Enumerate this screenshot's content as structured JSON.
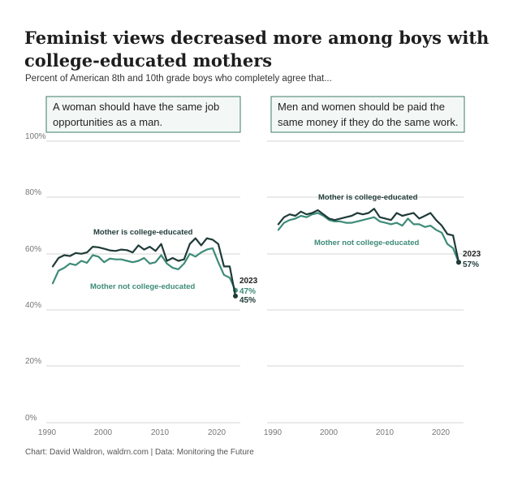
{
  "title": "Feminist views decreased more among boys with college-educated mothers",
  "subtitle": "Percent of American 8th and 10th grade boys who completely agree that...",
  "source": "Chart: David Waldron, waldrn.com | Data: Monitoring the Future",
  "colors": {
    "college": "#1f3b38",
    "not_college": "#3d8b78",
    "grid": "#d4d4d4",
    "box_border": "#3d7b6a",
    "box_fill": "#f3f8f6"
  },
  "chart_data": [
    {
      "type": "line",
      "panel_title": [
        "A woman should have the same job",
        "opportunities as a man."
      ],
      "x": [
        1991,
        1992,
        1993,
        1994,
        1995,
        1996,
        1997,
        1998,
        1999,
        2000,
        2001,
        2002,
        2003,
        2004,
        2005,
        2006,
        2007,
        2008,
        2009,
        2010,
        2011,
        2012,
        2013,
        2014,
        2015,
        2016,
        2017,
        2018,
        2019,
        2020,
        2021,
        2022,
        2023
      ],
      "xlim": [
        1989,
        2024
      ],
      "xticks": [
        "1990",
        "2000",
        "2010",
        "2020"
      ],
      "ylim": [
        0,
        100
      ],
      "yticks": [
        "100%",
        "80%",
        "60%",
        "40%",
        "20%",
        "0%"
      ],
      "series": [
        {
          "name": "Mother is college-educated",
          "color": "#1f3b38",
          "values": [
            55.5,
            58.5,
            59.5,
            59.2,
            60.3,
            60.0,
            60.5,
            62.5,
            62.3,
            61.8,
            61.2,
            61.0,
            61.5,
            61.3,
            60.5,
            63.0,
            61.5,
            62.5,
            61.0,
            63.5,
            57.5,
            58.5,
            57.5,
            58.0,
            63.5,
            65.5,
            63.0,
            65.5,
            65.0,
            63.5,
            55.5,
            55.5,
            45.0
          ]
        },
        {
          "name": "Mother not college-educated",
          "color": "#3d8b78",
          "values": [
            49.5,
            54.0,
            55.0,
            56.5,
            56.0,
            57.5,
            56.8,
            59.5,
            59.0,
            57.0,
            58.3,
            58.0,
            58.0,
            57.5,
            57.0,
            57.5,
            58.5,
            56.5,
            57.0,
            59.5,
            56.5,
            55.0,
            54.5,
            56.5,
            60.0,
            59.0,
            60.5,
            61.5,
            62.0,
            57.0,
            52.5,
            51.5,
            47.0
          ]
        }
      ],
      "end_year": "2023",
      "end_labels": [
        "47%",
        "45%"
      ]
    },
    {
      "type": "line",
      "panel_title": [
        "Men and women should be paid the",
        "same money if they do the same work."
      ],
      "x": [
        1991,
        1992,
        1993,
        1994,
        1995,
        1996,
        1997,
        1998,
        1999,
        2000,
        2001,
        2002,
        2003,
        2004,
        2005,
        2006,
        2007,
        2008,
        2009,
        2010,
        2011,
        2012,
        2013,
        2014,
        2015,
        2016,
        2017,
        2018,
        2019,
        2020,
        2021,
        2022,
        2023
      ],
      "xlim": [
        1989,
        2024
      ],
      "xticks": [
        "1990",
        "2000",
        "2010",
        "2020"
      ],
      "ylim": [
        0,
        100
      ],
      "yticks": [
        "100%",
        "80%",
        "60%",
        "40%",
        "20%",
        "0%"
      ],
      "series": [
        {
          "name": "Mother is college-educated",
          "color": "#1f3b38",
          "values": [
            70.5,
            73.0,
            74.0,
            73.5,
            75.0,
            74.0,
            74.5,
            75.5,
            74.0,
            72.5,
            72.0,
            72.5,
            73.0,
            73.5,
            74.5,
            74.0,
            74.5,
            76.0,
            73.0,
            72.5,
            72.0,
            74.5,
            73.5,
            74.0,
            74.5,
            72.5,
            73.5,
            74.5,
            72.0,
            70.0,
            67.0,
            66.5,
            57.0
          ]
        },
        {
          "name": "Mother not college-educated",
          "color": "#3d8b78",
          "values": [
            68.5,
            71.0,
            72.0,
            72.5,
            73.5,
            73.0,
            74.0,
            74.5,
            73.5,
            72.0,
            71.5,
            71.5,
            71.0,
            71.0,
            71.5,
            72.0,
            72.5,
            73.0,
            71.5,
            71.0,
            70.5,
            71.0,
            70.0,
            72.5,
            70.5,
            70.5,
            69.5,
            70.0,
            68.5,
            67.5,
            63.5,
            62.0,
            57.0
          ]
        }
      ],
      "end_year": "2023",
      "end_labels": [
        "57%"
      ]
    }
  ]
}
